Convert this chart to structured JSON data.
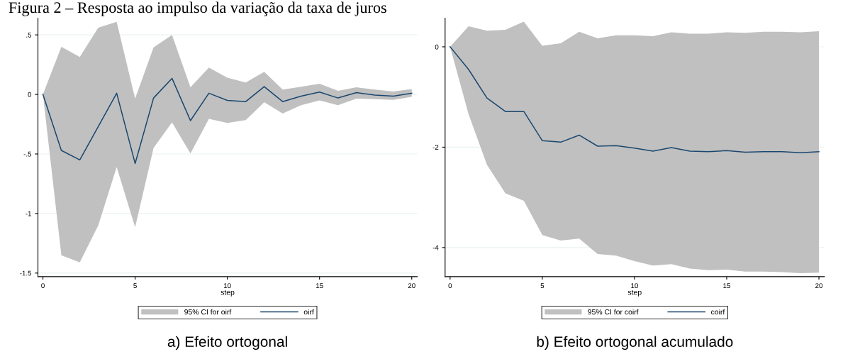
{
  "chart_data": [
    {
      "type": "line",
      "title": "Figura 2 – Resposta ao impulso da variação da taxa de juros",
      "xlabel": "step",
      "annotations": [
        "a) Efeito ortogonal",
        "95% CI for oirf"
      ],
      "x": [
        0,
        1,
        2,
        3,
        4,
        5,
        6,
        7,
        8,
        9,
        10,
        11,
        12,
        13,
        14,
        15,
        16,
        17,
        18,
        19,
        20
      ],
      "series": [
        {
          "name": "oirf",
          "type": "line",
          "color": "#1a476f",
          "values": [
            0,
            -0.47,
            -0.55,
            -0.27,
            0.01,
            -0.58,
            -0.03,
            0.135,
            -0.22,
            0.01,
            -0.05,
            -0.06,
            0.065,
            -0.06,
            -0.015,
            0.02,
            -0.03,
            0.015,
            -0.005,
            -0.015,
            0.01
          ],
          "upper": [
            0,
            0.4,
            0.315,
            0.56,
            0.61,
            -0.035,
            0.395,
            0.5,
            0.06,
            0.225,
            0.14,
            0.1,
            0.19,
            0.04,
            0.065,
            0.09,
            0.03,
            0.06,
            0.04,
            0.025,
            0.045
          ],
          "lower": [
            0,
            -1.35,
            -1.41,
            -1.1,
            -0.61,
            -1.115,
            -0.45,
            -0.235,
            -0.495,
            -0.205,
            -0.24,
            -0.215,
            -0.065,
            -0.16,
            -0.09,
            -0.05,
            -0.09,
            -0.035,
            -0.04,
            -0.045,
            -0.02
          ]
        }
      ],
      "xlim": [
        -0.27,
        20.3
      ],
      "xticks": [
        0,
        5,
        10,
        15,
        20
      ],
      "ylim": [
        -1.53,
        0.64
      ],
      "yticks": [
        {
          "value": -1.5,
          "label": "-1.5"
        },
        {
          "value": -1,
          "label": "-1"
        },
        {
          "value": -0.5,
          "label": "-.5"
        },
        0,
        {
          "value": 0.5,
          "label": ".5"
        }
      ],
      "grid": "y",
      "legend": "bottom"
    },
    {
      "type": "line",
      "xlabel": "step",
      "annotations": [
        "b) Efeito ortogonal acumulado",
        "95% CI for coirf"
      ],
      "x": [
        0,
        1,
        2,
        3,
        4,
        5,
        6,
        7,
        8,
        9,
        10,
        11,
        12,
        13,
        14,
        15,
        16,
        17,
        18,
        19,
        20
      ],
      "series": [
        {
          "name": "coirf",
          "type": "line",
          "color": "#1a476f",
          "values": [
            0,
            -0.45,
            -1.02,
            -1.29,
            -1.29,
            -1.87,
            -1.9,
            -1.76,
            -1.98,
            -1.97,
            -2.02,
            -2.08,
            -2.01,
            -2.08,
            -2.09,
            -2.07,
            -2.1,
            -2.09,
            -2.09,
            -2.11,
            -2.09
          ],
          "upper": [
            0,
            0.41,
            0.32,
            0.34,
            0.5,
            0.02,
            0.07,
            0.3,
            0.17,
            0.23,
            0.23,
            0.21,
            0.29,
            0.26,
            0.26,
            0.29,
            0.28,
            0.3,
            0.3,
            0.29,
            0.31
          ],
          "lower": [
            0,
            -1.34,
            -2.35,
            -2.92,
            -3.07,
            -3.75,
            -3.86,
            -3.82,
            -4.13,
            -4.16,
            -4.27,
            -4.36,
            -4.33,
            -4.42,
            -4.45,
            -4.44,
            -4.48,
            -4.48,
            -4.49,
            -4.51,
            -4.5
          ]
        }
      ],
      "xlim": [
        -0.27,
        20.3
      ],
      "xticks": [
        0,
        5,
        10,
        15,
        20
      ],
      "ylim": [
        -4.58,
        0.57
      ],
      "yticks": [
        -4,
        -2,
        0
      ],
      "grid": "y",
      "legend": "bottom"
    }
  ]
}
